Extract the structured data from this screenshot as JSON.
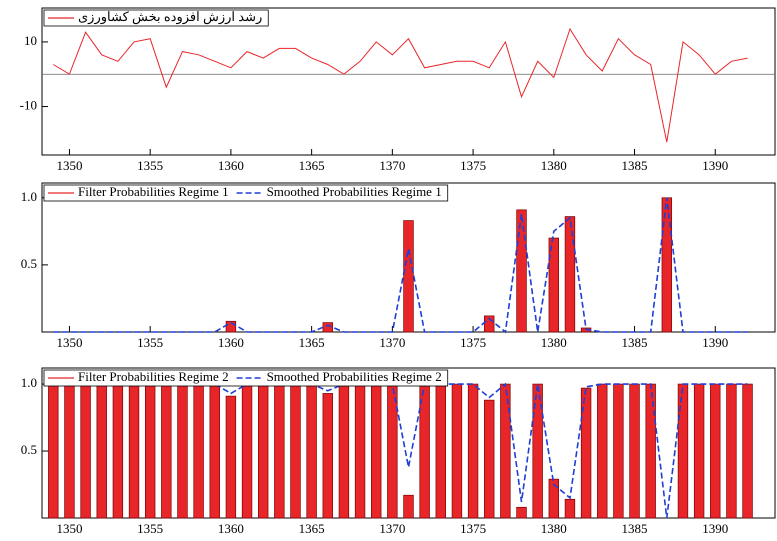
{
  "chart_data": [
    {
      "type": "line",
      "x": [
        1349,
        1350,
        1351,
        1352,
        1353,
        1354,
        1355,
        1356,
        1357,
        1358,
        1359,
        1360,
        1361,
        1362,
        1363,
        1364,
        1365,
        1366,
        1367,
        1368,
        1369,
        1370,
        1371,
        1372,
        1373,
        1374,
        1375,
        1376,
        1377,
        1378,
        1379,
        1380,
        1381,
        1382,
        1383,
        1384,
        1385,
        1386,
        1387,
        1388,
        1389,
        1390,
        1391,
        1392
      ],
      "series": [
        {
          "name": "رشد ارزش افزوده بخش کشاورزی",
          "color": "#e8262a",
          "values": [
            3,
            0,
            13,
            6,
            4,
            10,
            11,
            -4,
            7,
            6,
            4,
            2,
            7,
            5,
            8,
            8,
            5,
            3,
            0,
            4,
            10,
            6,
            11,
            2,
            3,
            4,
            4,
            2,
            10,
            -7,
            4,
            -1,
            14,
            6,
            1,
            11,
            6,
            3,
            -21,
            10,
            6,
            0,
            4,
            5
          ]
        }
      ],
      "hline": 0,
      "xlim": [
        1348.3,
        1393.7
      ],
      "xticks": [
        1350,
        1355,
        1360,
        1365,
        1370,
        1375,
        1380,
        1385,
        1390
      ],
      "ylim": [
        -25,
        20.5
      ],
      "yticks": [
        -10,
        10
      ]
    },
    {
      "type": "bar",
      "x": [
        1349,
        1350,
        1351,
        1352,
        1353,
        1354,
        1355,
        1356,
        1357,
        1358,
        1359,
        1360,
        1361,
        1362,
        1363,
        1364,
        1365,
        1366,
        1367,
        1368,
        1369,
        1370,
        1371,
        1372,
        1373,
        1374,
        1375,
        1376,
        1377,
        1378,
        1379,
        1380,
        1381,
        1382,
        1383,
        1384,
        1385,
        1386,
        1387,
        1388,
        1389,
        1390,
        1391,
        1392
      ],
      "series": [
        {
          "name": "Filter Probabilities Regime 1",
          "color": "#e8262a",
          "kind": "bar",
          "values": [
            0,
            0,
            0,
            0,
            0,
            0,
            0,
            0,
            0,
            0,
            0,
            0.08,
            0,
            0,
            0,
            0,
            0,
            0.07,
            0,
            0,
            0,
            0,
            0.83,
            0,
            0,
            0,
            0,
            0.12,
            0,
            0.91,
            0,
            0.7,
            0.86,
            0.03,
            0,
            0,
            0,
            0,
            1,
            0,
            0,
            0,
            0,
            0
          ]
        },
        {
          "name": "Smoothed Probabilities Regime 1",
          "color": "#1f3fd6",
          "kind": "line",
          "dashed": true,
          "values": [
            0,
            0,
            0,
            0,
            0,
            0,
            0,
            0,
            0,
            0,
            0,
            0.07,
            0,
            0,
            0,
            0,
            0,
            0.05,
            0,
            0,
            0,
            0,
            0.62,
            0,
            0,
            0,
            0,
            0.1,
            0,
            0.88,
            0,
            0.75,
            0.85,
            0.02,
            0,
            0,
            0,
            0,
            1,
            0,
            0,
            0,
            0,
            0
          ]
        }
      ],
      "xlim": [
        1348.3,
        1393.7
      ],
      "xticks": [
        1350,
        1355,
        1360,
        1365,
        1370,
        1375,
        1380,
        1385,
        1390
      ],
      "ylim": [
        0,
        1.11
      ],
      "yticks": [
        0.5,
        {
          "value": 1,
          "label": "1.0"
        }
      ]
    },
    {
      "type": "bar",
      "x": [
        1349,
        1350,
        1351,
        1352,
        1353,
        1354,
        1355,
        1356,
        1357,
        1358,
        1359,
        1360,
        1361,
        1362,
        1363,
        1364,
        1365,
        1366,
        1367,
        1368,
        1369,
        1370,
        1371,
        1372,
        1373,
        1374,
        1375,
        1376,
        1377,
        1378,
        1379,
        1380,
        1381,
        1382,
        1383,
        1384,
        1385,
        1386,
        1387,
        1388,
        1389,
        1390,
        1391,
        1392
      ],
      "series": [
        {
          "name": "Filter Probabilities Regime 2",
          "color": "#e8262a",
          "kind": "bar",
          "values": [
            1,
            1,
            1,
            1,
            1,
            1,
            1,
            1,
            1,
            1,
            1,
            0.91,
            1,
            1,
            1,
            1,
            1,
            0.93,
            1,
            1,
            1,
            1,
            0.17,
            1,
            1,
            1,
            1,
            0.88,
            1,
            0.08,
            1,
            0.29,
            0.14,
            0.97,
            1,
            1,
            1,
            1,
            0,
            1,
            1,
            1,
            1,
            1
          ]
        },
        {
          "name": "Smoothed Probabilities Regime 2",
          "color": "#1f3fd6",
          "kind": "line",
          "dashed": true,
          "values": [
            1,
            1,
            1,
            1,
            1,
            1,
            1,
            1,
            1,
            1,
            1,
            0.93,
            1,
            1,
            1,
            1,
            1,
            0.95,
            1,
            1,
            1,
            1,
            0.38,
            1,
            1,
            1,
            1,
            0.9,
            1,
            0.12,
            1,
            0.25,
            0.15,
            0.98,
            1,
            1,
            1,
            1,
            0,
            1,
            1,
            1,
            1,
            1
          ]
        }
      ],
      "xlim": [
        1348.3,
        1393.7
      ],
      "xticks": [
        1350,
        1355,
        1360,
        1365,
        1370,
        1375,
        1380,
        1385,
        1390
      ],
      "ylim": [
        0,
        1.12
      ],
      "yticks": [
        0.5,
        {
          "value": 1,
          "label": "1.0"
        }
      ]
    }
  ]
}
